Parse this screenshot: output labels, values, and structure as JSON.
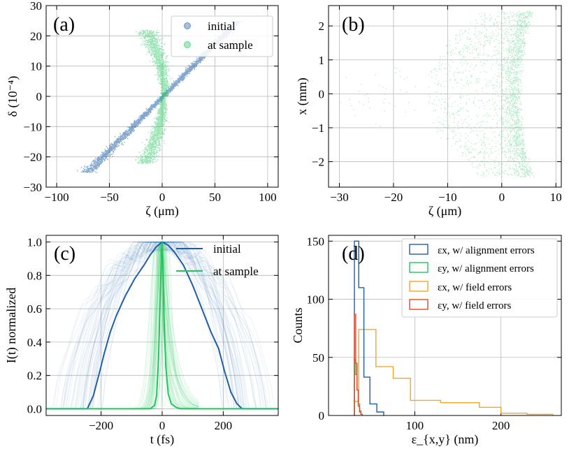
{
  "colors": {
    "initial": "#1f5fa6",
    "sample": "#22c55e",
    "field": "#f5a623",
    "red": "#e8482c"
  },
  "chart_data": [
    {
      "type": "scatter",
      "panel_label": "(a)",
      "xlabel": "ζ (μm)",
      "ylabel": "δ (10⁻⁴)",
      "xlim": [
        -110,
        110
      ],
      "ylim": [
        -30,
        30
      ],
      "xticks": [
        "−100",
        "−50",
        "0",
        "50",
        "100"
      ],
      "xtick_values": [
        -100,
        -50,
        0,
        50,
        100
      ],
      "yticks": [
        "−30",
        "−20",
        "−10",
        "0",
        "10",
        "20",
        "30"
      ],
      "ytick_values": [
        -30,
        -20,
        -10,
        0,
        10,
        20,
        30
      ],
      "legend": [
        "initial",
        "at sample"
      ],
      "series": [
        {
          "name": "initial",
          "points": [
            [
              -72,
              -25
            ],
            [
              -50,
              -17
            ],
            [
              -25,
              -9
            ],
            [
              0,
              0
            ],
            [
              25,
              9
            ],
            [
              50,
              17
            ],
            [
              72,
              25
            ]
          ]
        },
        {
          "name": "at sample",
          "points": [
            [
              -18,
              21
            ],
            [
              -10,
              14
            ],
            [
              -4,
              7
            ],
            [
              0,
              0
            ],
            [
              -4,
              -7
            ],
            [
              -10,
              -14
            ],
            [
              -18,
              -21
            ]
          ]
        }
      ]
    },
    {
      "type": "scatter",
      "panel_label": "(b)",
      "xlabel": "ζ (μm)",
      "ylabel": "x (mm)",
      "xlim": [
        -32,
        11
      ],
      "ylim": [
        -2.75,
        2.6
      ],
      "xticks": [
        "−30",
        "−20",
        "−10",
        "0",
        "10"
      ],
      "xtick_values": [
        -30,
        -20,
        -10,
        0,
        10
      ],
      "yticks": [
        "−2",
        "−1",
        "0",
        "1",
        "2"
      ],
      "ytick_values": [
        -2,
        -1,
        0,
        1,
        2
      ],
      "series": [
        {
          "name": "at sample",
          "points": [
            [
              -15,
              0
            ],
            [
              -8,
              1
            ],
            [
              -8,
              -1
            ],
            [
              2,
              2.4
            ],
            [
              2,
              -2.4
            ],
            [
              4,
              0
            ]
          ]
        }
      ]
    },
    {
      "type": "line",
      "panel_label": "(c)",
      "xlabel": "t (fs)",
      "ylabel": "I(t) normalized",
      "xlim": [
        -380,
        380
      ],
      "ylim": [
        -0.04,
        1.04
      ],
      "xticks": [
        "−200",
        "0",
        "200"
      ],
      "xtick_values": [
        -200,
        0,
        200
      ],
      "yticks": [
        "0.0",
        "0.2",
        "0.4",
        "0.6",
        "0.8",
        "1.0"
      ],
      "ytick_values": [
        0,
        0.2,
        0.4,
        0.6,
        0.8,
        1.0
      ],
      "legend": [
        "initial",
        "at sample"
      ],
      "series": [
        {
          "name": "initial",
          "x": [
            -380,
            -245,
            -225,
            -205,
            -190,
            -170,
            -150,
            -120,
            -90,
            -60,
            -40,
            -20,
            0,
            20,
            40,
            70,
            100,
            130,
            160,
            185,
            205,
            225,
            245,
            262,
            380
          ],
          "y": [
            0,
            0,
            0.08,
            0.22,
            0.33,
            0.46,
            0.56,
            0.68,
            0.78,
            0.86,
            0.92,
            0.97,
            1.0,
            0.98,
            0.94,
            0.86,
            0.74,
            0.6,
            0.46,
            0.36,
            0.22,
            0.1,
            0.03,
            0,
            0
          ]
        },
        {
          "name": "at sample",
          "x": [
            -380,
            -40,
            -25,
            -18,
            -12,
            -6,
            -2,
            0,
            2,
            6,
            12,
            20,
            30,
            45,
            60,
            380
          ],
          "y": [
            0,
            0,
            0.02,
            0.08,
            0.3,
            0.7,
            0.95,
            1.0,
            0.9,
            0.55,
            0.25,
            0.09,
            0.03,
            0.01,
            0,
            0
          ]
        }
      ]
    },
    {
      "type": "histogram",
      "panel_label": "(d)",
      "xlabel": "ε_{x,y} (nm)",
      "ylabel": "Counts",
      "xlim": [
        0,
        270
      ],
      "ylim": [
        0,
        155
      ],
      "xticks": [
        "100",
        "200"
      ],
      "xtick_values": [
        100,
        200
      ],
      "yticks": [
        "0",
        "50",
        "100",
        "150"
      ],
      "ytick_values": [
        0,
        50,
        100,
        150
      ],
      "legend": [
        "εx, w/ alignment errors",
        "εy, w/ alignment errors",
        "εx, w/ field errors",
        "εy, w/ field errors"
      ],
      "series": [
        {
          "name": "εx, w/ alignment errors",
          "edges": [
            30,
            35,
            41,
            48,
            56,
            64
          ],
          "counts": [
            150,
            110,
            33,
            10,
            3
          ]
        },
        {
          "name": "εy, w/ alignment errors",
          "edges": [
            30,
            31.5,
            33,
            34.5,
            36,
            37.5,
            39
          ],
          "counts": [
            48,
            35,
            22,
            10,
            4,
            1
          ]
        },
        {
          "name": "εx, w/ field errors",
          "edges": [
            30,
            35,
            55,
            75,
            95,
            130,
            175,
            200,
            230,
            260
          ],
          "counts": [
            12,
            74,
            42,
            32,
            13,
            11,
            7,
            2,
            1
          ]
        },
        {
          "name": "εy, w/ field errors",
          "edges": [
            30,
            31.5,
            33,
            34.5,
            36,
            37.5,
            39
          ],
          "counts": [
            87,
            45,
            22,
            8,
            3,
            1
          ]
        }
      ]
    }
  ]
}
